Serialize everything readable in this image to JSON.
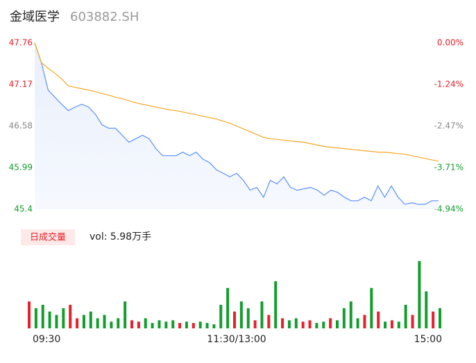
{
  "header": {
    "name": "金域医学",
    "code": "603882.SH"
  },
  "chart_data": [
    {
      "type": "line",
      "x": [
        0,
        4,
        8,
        12,
        16,
        20,
        24,
        28,
        32,
        36,
        40,
        44,
        48,
        52,
        56,
        60,
        64,
        68,
        72,
        76,
        80,
        84,
        88,
        92,
        96,
        100,
        104,
        108,
        112,
        116,
        120,
        124,
        128,
        132,
        136,
        140,
        144,
        148,
        152,
        156,
        160,
        164,
        168,
        172,
        176,
        180,
        184,
        188,
        192,
        196,
        200,
        204,
        208,
        212,
        216,
        220,
        224,
        228,
        232,
        236,
        240
      ],
      "series": [
        {
          "color": "#5b8ff9",
          "values": [
            47.76,
            47.48,
            47.09,
            46.99,
            46.89,
            46.8,
            46.85,
            46.89,
            46.85,
            46.75,
            46.6,
            46.55,
            46.55,
            46.45,
            46.35,
            46.4,
            46.45,
            46.4,
            46.26,
            46.16,
            46.16,
            46.16,
            46.21,
            46.16,
            46.21,
            46.11,
            46.06,
            45.96,
            45.91,
            45.86,
            45.91,
            45.81,
            45.67,
            45.71,
            45.57,
            45.81,
            45.76,
            45.86,
            45.71,
            45.67,
            45.69,
            45.71,
            45.67,
            45.6,
            45.67,
            45.64,
            45.57,
            45.52,
            45.52,
            45.57,
            45.52,
            45.73,
            45.57,
            45.73,
            45.57,
            45.47,
            45.49,
            45.47,
            45.47,
            45.52,
            45.52
          ]
        },
        {
          "color": "#f5a623",
          "values": [
            47.76,
            47.48,
            47.4,
            47.33,
            47.25,
            47.15,
            47.13,
            47.11,
            47.09,
            47.07,
            47.04,
            47.02,
            46.99,
            46.97,
            46.94,
            46.91,
            46.89,
            46.87,
            46.85,
            46.83,
            46.81,
            46.8,
            46.78,
            46.76,
            46.74,
            46.72,
            46.7,
            46.68,
            46.65,
            46.62,
            46.58,
            46.54,
            46.5,
            46.46,
            46.42,
            46.4,
            46.39,
            46.38,
            46.37,
            46.36,
            46.35,
            46.33,
            46.31,
            46.29,
            46.28,
            46.27,
            46.26,
            46.25,
            46.24,
            46.23,
            46.22,
            46.21,
            46.21,
            46.2,
            46.19,
            46.18,
            46.16,
            46.14,
            46.12,
            46.1,
            46.08
          ]
        }
      ],
      "xlim": [
        0,
        240
      ],
      "ylim": [
        45.4,
        47.76
      ],
      "yticks": [
        47.76,
        47.17,
        46.58,
        45.99,
        45.4
      ],
      "y2lim": [
        -4.94,
        0
      ],
      "y2ticks": [
        {
          "value": 0,
          "label": "0.00%"
        },
        {
          "value": -1.24,
          "label": "-1.24%"
        },
        {
          "value": -2.47,
          "label": "-2.47%"
        },
        {
          "value": -3.71,
          "label": "-3.71%"
        },
        {
          "value": -4.94,
          "label": "-4.94%"
        }
      ],
      "tick_colors": [
        "#e8202a",
        "#e8202a",
        "#888888",
        "#139d2d",
        "#139d2d"
      ],
      "grid": false
    },
    {
      "type": "bar",
      "title": "日成交量",
      "subtitle": "vol: 5.98万手",
      "x": [
        0,
        4,
        8,
        12,
        16,
        20,
        24,
        28,
        32,
        36,
        40,
        44,
        48,
        52,
        56,
        60,
        64,
        68,
        72,
        76,
        80,
        84,
        88,
        92,
        96,
        100,
        104,
        108,
        112,
        116,
        120,
        124,
        128,
        132,
        136,
        140,
        144,
        148,
        152,
        156,
        160,
        164,
        168,
        172,
        176,
        180,
        184,
        188,
        192,
        196,
        200,
        204,
        208,
        212,
        216,
        220,
        224,
        228,
        232,
        236,
        240
      ],
      "values": [
        40,
        30,
        35,
        25,
        20,
        30,
        35,
        15,
        20,
        25,
        15,
        20,
        10,
        15,
        40,
        12,
        10,
        15,
        8,
        12,
        10,
        12,
        8,
        10,
        8,
        10,
        8,
        6,
        35,
        60,
        25,
        40,
        30,
        12,
        40,
        20,
        70,
        15,
        12,
        15,
        10,
        12,
        8,
        10,
        15,
        12,
        30,
        40,
        15,
        20,
        60,
        25,
        10,
        12,
        10,
        35,
        20,
        100,
        55,
        25,
        30
      ],
      "colors": [
        "#e8202a",
        "#139d2d",
        "#139d2d",
        "#139d2d",
        "#139d2d",
        "#139d2d",
        "#e8202a",
        "#e8202a",
        "#139d2d",
        "#139d2d",
        "#139d2d",
        "#139d2d",
        "#139d2d",
        "#139d2d",
        "#139d2d",
        "#e8202a",
        "#e8202a",
        "#139d2d",
        "#139d2d",
        "#139d2d",
        "#139d2d",
        "#139d2d",
        "#e8202a",
        "#139d2d",
        "#e8202a",
        "#139d2d",
        "#139d2d",
        "#139d2d",
        "#139d2d",
        "#139d2d",
        "#e8202a",
        "#139d2d",
        "#139d2d",
        "#e8202a",
        "#139d2d",
        "#e8202a",
        "#139d2d",
        "#e8202a",
        "#139d2d",
        "#139d2d",
        "#e8202a",
        "#e8202a",
        "#139d2d",
        "#139d2d",
        "#e8202a",
        "#139d2d",
        "#139d2d",
        "#139d2d",
        "#139d2d",
        "#e8202a",
        "#139d2d",
        "#e8202a",
        "#139d2d",
        "#e8202a",
        "#139d2d",
        "#139d2d",
        "#e8202a",
        "#139d2d",
        "#139d2d",
        "#e8202a",
        "#139d2d"
      ],
      "xlim": [
        0,
        240
      ],
      "ylim": [
        0,
        105
      ],
      "xticks": [
        {
          "value": 0,
          "label": "09:30"
        },
        {
          "value": 120,
          "label": "11:30/13:00"
        },
        {
          "value": 240,
          "label": "15:00"
        }
      ]
    }
  ]
}
